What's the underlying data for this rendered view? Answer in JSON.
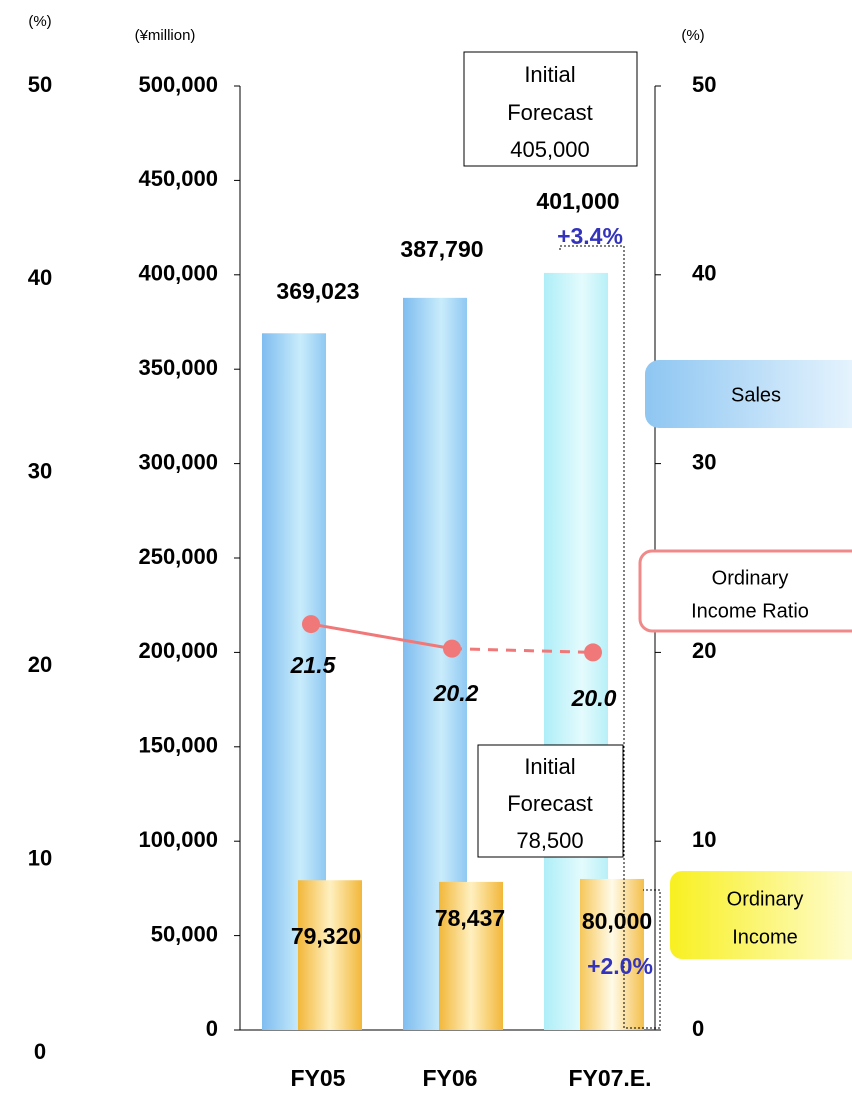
{
  "chart_data": {
    "type": "bar",
    "categories": [
      "FY05",
      "FY06",
      "FY07.E."
    ],
    "ylabel": "(¥million)",
    "y2label": "(%)",
    "ylim": [
      0,
      500000
    ],
    "yticks": [
      {
        "value": 0,
        "label": "0"
      },
      {
        "value": 50000,
        "label": "50,000"
      },
      {
        "value": 100000,
        "label": "100,000"
      },
      {
        "value": 150000,
        "label": "150,000"
      },
      {
        "value": 200000,
        "label": "200,000"
      },
      {
        "value": 250000,
        "label": "250,000"
      },
      {
        "value": 300000,
        "label": "300,000"
      },
      {
        "value": 350000,
        "label": "350,000"
      },
      {
        "value": 400000,
        "label": "400,000"
      },
      {
        "value": 450000,
        "label": "450,000"
      },
      {
        "value": 500000,
        "label": "500,000"
      }
    ],
    "y2lim": [
      0,
      50
    ],
    "y2ticks": [
      0,
      10,
      20,
      30,
      40,
      50
    ],
    "series": [
      {
        "name": "Sales",
        "type": "bar",
        "colors": [
          "#a8d4f6",
          "#a8d4f6",
          "#c6f2fa"
        ],
        "values": [
          369023,
          387790,
          401000
        ],
        "value_labels": [
          "369,023",
          "387,790",
          "401,000"
        ]
      },
      {
        "name": "Ordinary Income",
        "type": "bar",
        "color": "#f6c443",
        "values": [
          79320,
          78437,
          80000
        ],
        "value_labels": [
          "79,320",
          "78,437",
          "80,000"
        ]
      },
      {
        "name": "Ordinary Income Ratio",
        "type": "line",
        "axis": "y2",
        "color": "#f07878",
        "values": [
          21.5,
          20.2,
          20.0
        ],
        "value_labels": [
          "21.5",
          "20.2",
          "20.0"
        ],
        "segment_styles": [
          "solid",
          "dashed"
        ]
      }
    ],
    "annotations": [
      {
        "lines": [
          "Initial",
          "Forecast",
          "405,000"
        ]
      },
      {
        "text": "+3.4%"
      },
      {
        "lines": [
          "Initial",
          "Forecast",
          "78,500"
        ]
      },
      {
        "text": "+2.0%"
      }
    ],
    "legend_lines": [
      [
        "Sales"
      ],
      [
        "Ordinary",
        "Income Ratio"
      ],
      [
        "Ordinary",
        "Income"
      ]
    ]
  }
}
